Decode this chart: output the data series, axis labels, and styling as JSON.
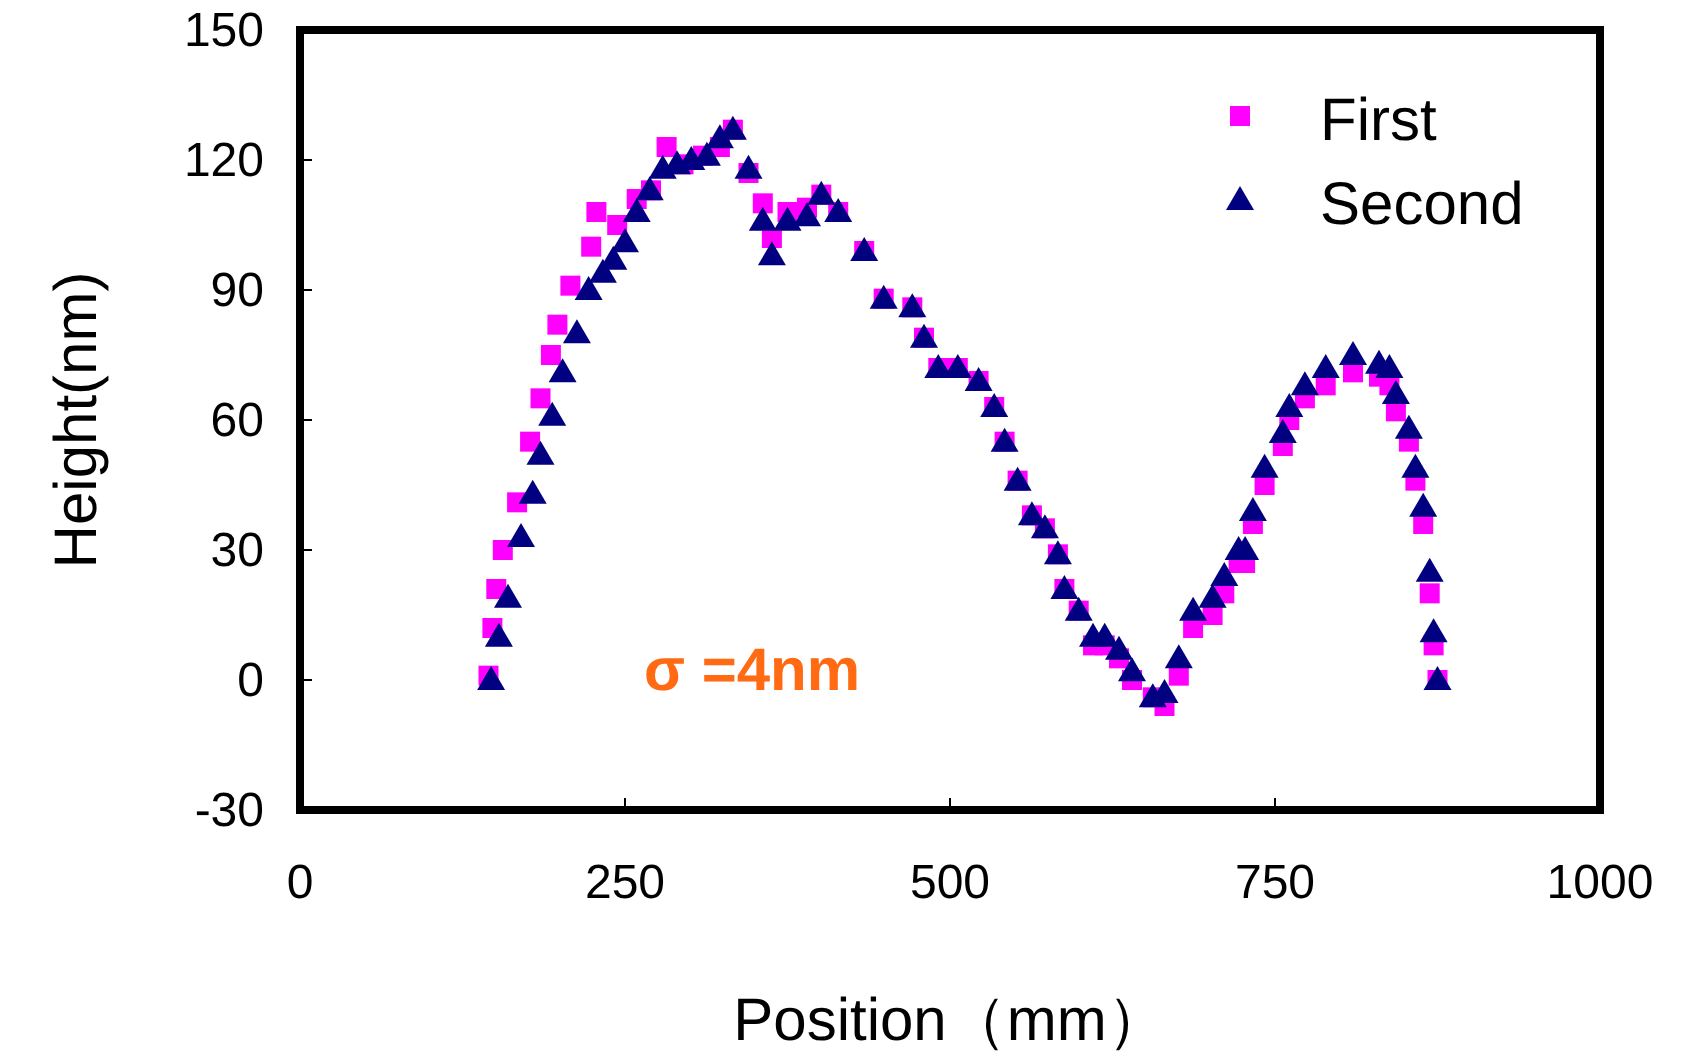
{
  "chart_data": {
    "type": "scatter",
    "xlabel": "Position（mm）",
    "ylabel": "Height(nm)",
    "annotations": [
      "σ =4nm"
    ],
    "xlim": [
      0,
      1000
    ],
    "ylim": [
      -30,
      150
    ],
    "xticks": [
      0,
      250,
      500,
      750,
      1000
    ],
    "yticks": [
      -30,
      0,
      30,
      60,
      90,
      120,
      150
    ],
    "grid": false,
    "legend": "top right",
    "series": [
      {
        "name": "First",
        "color": "#ff00ff",
        "marker": "square",
        "x": [
          145,
          148,
          151,
          156,
          167,
          177,
          185,
          193,
          198,
          208,
          224,
          228,
          244,
          259,
          270,
          282,
          295,
          310,
          323,
          333,
          345,
          356,
          363,
          375,
          390,
          401,
          414,
          434,
          449,
          471,
          480,
          491,
          506,
          522,
          534,
          542,
          552,
          563,
          573,
          583,
          588,
          599,
          610,
          619,
          630,
          640,
          656,
          665,
          676,
          687,
          702,
          711,
          722,
          727,
          733,
          742,
          756,
          761,
          773,
          789,
          810,
          830,
          838,
          843,
          853,
          858,
          864,
          869,
          872,
          875
        ],
        "values": [
          1,
          12,
          21,
          30,
          41,
          55,
          65,
          75,
          82,
          91,
          100,
          108,
          105,
          111,
          113,
          123,
          119,
          121,
          123,
          127,
          117,
          110,
          102,
          108,
          109,
          112,
          108,
          99,
          88,
          86,
          79,
          72,
          72,
          69,
          63,
          55,
          46,
          38,
          35,
          29,
          21,
          16,
          8,
          8,
          5,
          0,
          -4,
          -6,
          1,
          12,
          15,
          20,
          27,
          27,
          36,
          45,
          54,
          60,
          65,
          68,
          71,
          70,
          68,
          62,
          55,
          46,
          36,
          20,
          8,
          0
        ]
      },
      {
        "name": "Second",
        "color": "#000080",
        "marker": "triangle",
        "x": [
          147,
          153,
          160,
          170,
          179,
          185,
          194,
          202,
          213,
          222,
          233,
          241,
          250,
          259,
          269,
          279,
          290,
          301,
          313,
          323,
          333,
          345,
          356,
          363,
          375,
          390,
          401,
          414,
          434,
          449,
          471,
          480,
          491,
          506,
          522,
          534,
          542,
          552,
          563,
          573,
          583,
          588,
          599,
          610,
          619,
          630,
          640,
          656,
          665,
          676,
          687,
          702,
          711,
          722,
          727,
          733,
          742,
          756,
          761,
          773,
          789,
          810,
          830,
          838,
          843,
          853,
          858,
          864,
          869,
          872,
          875
        ],
        "values": [
          0,
          10,
          19,
          33,
          43,
          52,
          61,
          71,
          80,
          90,
          94,
          97,
          101,
          108,
          113,
          118,
          119,
          120,
          121,
          125,
          127,
          118,
          106,
          98,
          106,
          107,
          112,
          108,
          99,
          88,
          86,
          79,
          72,
          72,
          69,
          63,
          55,
          46,
          38,
          35,
          29,
          21,
          16,
          10,
          10,
          7,
          2,
          -4,
          -3,
          5,
          16,
          19,
          24,
          30,
          30,
          39,
          49,
          57,
          63,
          68,
          72,
          75,
          73,
          72,
          66,
          58,
          49,
          40,
          25,
          11,
          0
        ]
      }
    ]
  }
}
